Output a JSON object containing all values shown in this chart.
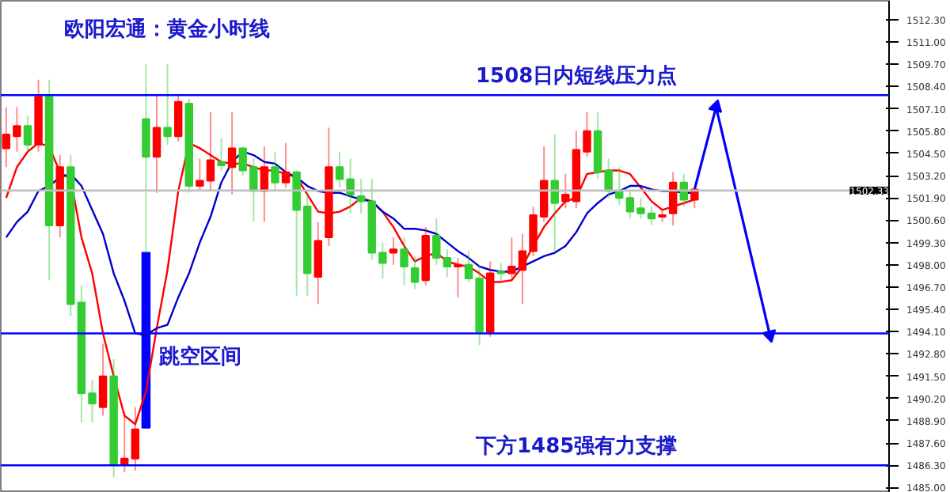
{
  "chart_data": {
    "type": "candlestick",
    "title": "欧阳宏通：黄金小时线",
    "categories": [
      null,
      null,
      null,
      null,
      null,
      null,
      null,
      null,
      null,
      null,
      null,
      null,
      null,
      null,
      null,
      null,
      null,
      null,
      null,
      null,
      null,
      null,
      null,
      null,
      null,
      null,
      null,
      null,
      null,
      null,
      null,
      null,
      null,
      null,
      null,
      null,
      null,
      null,
      null,
      null,
      null,
      null,
      null,
      null,
      null,
      null,
      null,
      null,
      null,
      null,
      null,
      null,
      null,
      null,
      null,
      null,
      null,
      null,
      null,
      null,
      null,
      null,
      null,
      null,
      null,
      null,
      null,
      null,
      null,
      null,
      null,
      null
    ],
    "ohlc": [
      [
        1504.8,
        1507.2,
        1503.7,
        1505.6
      ],
      [
        1505.5,
        1507.2,
        1504.6,
        1506.1
      ],
      [
        1506.1,
        1506.7,
        1504.6,
        1505.0
      ],
      [
        1505.0,
        1508.8,
        1504.6,
        1507.8
      ],
      [
        1507.8,
        1508.8,
        1497.1,
        1500.3
      ],
      [
        1500.3,
        1504.4,
        1499.6,
        1503.7
      ],
      [
        1503.7,
        1504.4,
        1495.0,
        1495.7
      ],
      [
        1495.8,
        1496.8,
        1488.8,
        1490.5
      ],
      [
        1490.5,
        1491.3,
        1488.8,
        1489.9
      ],
      [
        1489.7,
        1493.4,
        1489.2,
        1491.5
      ],
      [
        1491.5,
        1492.5,
        1485.6,
        1486.4
      ],
      [
        1486.4,
        1489.4,
        1485.9,
        1486.7
      ],
      [
        1486.7,
        1489.7,
        1486.0,
        1488.4
      ],
      [
        1506.5,
        1509.7,
        1498.7,
        1504.3
      ],
      [
        1504.3,
        1507.9,
        1502.2,
        1506.0
      ],
      [
        1506.0,
        1509.7,
        1505.0,
        1505.5
      ],
      [
        1505.5,
        1507.9,
        1505.2,
        1507.5
      ],
      [
        1507.4,
        1507.7,
        1502.2,
        1502.6
      ],
      [
        1502.6,
        1504.2,
        1502.3,
        1502.9
      ],
      [
        1502.9,
        1506.9,
        1502.3,
        1504.1
      ],
      [
        1504.0,
        1505.4,
        1503.5,
        1503.8
      ],
      [
        1503.7,
        1506.9,
        1502.1,
        1504.8
      ],
      [
        1504.8,
        1504.9,
        1503.2,
        1503.5
      ],
      [
        1503.7,
        1504.2,
        1500.5,
        1502.3
      ],
      [
        1502.3,
        1504.9,
        1500.5,
        1503.7
      ],
      [
        1503.7,
        1504.6,
        1502.3,
        1502.8
      ],
      [
        1502.8,
        1505.1,
        1502.5,
        1503.4
      ],
      [
        1503.4,
        1503.5,
        1496.2,
        1501.2
      ],
      [
        1501.4,
        1502.3,
        1496.2,
        1497.5
      ],
      [
        1497.3,
        1500.5,
        1495.7,
        1499.4
      ],
      [
        1499.6,
        1506.0,
        1499.1,
        1503.7
      ],
      [
        1503.7,
        1504.6,
        1502.5,
        1503.0
      ],
      [
        1503.0,
        1504.2,
        1501.0,
        1502.1
      ],
      [
        1502.0,
        1503.0,
        1501.0,
        1501.7
      ],
      [
        1501.7,
        1503.0,
        1498.3,
        1498.7
      ],
      [
        1498.7,
        1499.3,
        1497.2,
        1498.1
      ],
      [
        1498.7,
        1499.6,
        1498.0,
        1498.9
      ],
      [
        1498.9,
        1499.6,
        1496.8,
        1497.9
      ],
      [
        1497.8,
        1498.5,
        1496.6,
        1497.0
      ],
      [
        1497.1,
        1500.2,
        1496.8,
        1499.7
      ],
      [
        1499.7,
        1500.7,
        1498.0,
        1498.4
      ],
      [
        1498.4,
        1498.9,
        1497.3,
        1497.9
      ],
      [
        1497.9,
        1498.4,
        1496.1,
        1498.0
      ],
      [
        1498.0,
        1498.8,
        1497.0,
        1497.2
      ],
      [
        1497.2,
        1498.0,
        1493.3,
        1494.1
      ],
      [
        1494.0,
        1498.2,
        1493.8,
        1497.5
      ],
      [
        1497.6,
        1498.1,
        1497.0,
        1497.5
      ],
      [
        1497.5,
        1499.6,
        1497.2,
        1497.9
      ],
      [
        1497.7,
        1499.8,
        1495.7,
        1498.8
      ],
      [
        1498.8,
        1501.4,
        1498.5,
        1500.9
      ],
      [
        1500.8,
        1504.9,
        1500.5,
        1502.9
      ],
      [
        1502.9,
        1505.6,
        1498.8,
        1501.6
      ],
      [
        1501.7,
        1503.3,
        1501.3,
        1502.1
      ],
      [
        1501.7,
        1505.8,
        1501.3,
        1504.7
      ],
      [
        1504.6,
        1506.9,
        1504.3,
        1505.8
      ],
      [
        1505.8,
        1506.9,
        1503.0,
        1503.4
      ],
      [
        1503.5,
        1504.2,
        1501.9,
        1502.3
      ],
      [
        1502.3,
        1503.7,
        1501.5,
        1501.9
      ],
      [
        1501.9,
        1502.3,
        1500.7,
        1501.1
      ],
      [
        1501.3,
        1501.9,
        1500.7,
        1501.0
      ],
      [
        1501.0,
        1501.4,
        1500.3,
        1500.7
      ],
      [
        1500.8,
        1501.2,
        1500.5,
        1500.9
      ],
      [
        1501.0,
        1503.4,
        1500.3,
        1502.8
      ],
      [
        1502.8,
        1503.3,
        1501.4,
        1501.8
      ],
      [
        1501.8,
        1502.5,
        1501.3,
        1502.4
      ],
      null,
      null,
      null,
      null,
      null,
      null,
      null
    ],
    "colors": [
      "#ff0000",
      "#ff0000",
      "#33cc33",
      "#ff0000",
      "#33cc33",
      "#ff0000",
      "#33cc33",
      "#33cc33",
      "#33cc33",
      "#ff0000",
      "#33cc33",
      "#ff0000",
      "#ff0000",
      "#33cc33",
      "#ff0000",
      "#33cc33",
      "#ff0000",
      "#33cc33",
      "#ff0000",
      "#ff0000",
      "#33cc33",
      "#ff0000",
      "#33cc33",
      "#33cc33",
      "#ff0000",
      "#33cc33",
      "#ff0000",
      "#33cc33",
      "#33cc33",
      "#ff0000",
      "#ff0000",
      "#33cc33",
      "#33cc33",
      "#33cc33",
      "#33cc33",
      "#33cc33",
      "#ff0000",
      "#33cc33",
      "#33cc33",
      "#ff0000",
      "#33cc33",
      "#33cc33",
      "#ff0000",
      "#33cc33",
      "#33cc33",
      "#ff0000",
      "#33cc33",
      "#ff0000",
      "#ff0000",
      "#ff0000",
      "#ff0000",
      "#33cc33",
      "#ff0000",
      "#ff0000",
      "#ff0000",
      "#33cc33",
      "#33cc33",
      "#33cc33",
      "#33cc33",
      "#33cc33",
      "#33cc33",
      "#ff0000",
      "#ff0000",
      "#33cc33",
      "#ff0000",
      null,
      null,
      null,
      null,
      null,
      null,
      null
    ],
    "series": [
      {
        "type": "line",
        "color": "#ff0000",
        "values": [
          1501.9,
          1503.7,
          1504.6,
          1505.1,
          1504.9,
          1503.4,
          1503.0,
          1499.6,
          1497.5,
          1494.0,
          1491.5,
          1489.2,
          1488.7,
          1490.6,
          1494.3,
          1497.7,
          1502.3,
          1505.1,
          1504.8,
          1504.4,
          1504.0,
          1503.9,
          1503.9,
          1503.7,
          1503.5,
          1503.5,
          1503.3,
          1503.1,
          1502.1,
          1501.1,
          1501.0,
          1501.1,
          1501.4,
          1501.9,
          1501.7,
          1501.1,
          1500.2,
          1499.1,
          1498.2,
          1498.5,
          1498.7,
          1498.2,
          1498.0,
          1497.9,
          1497.5,
          1497.0,
          1497.0,
          1497.1,
          1497.9,
          1499.1,
          1500.2,
          1501.0,
          1501.7,
          1501.9,
          1503.3,
          1503.4,
          1503.5,
          1503.5,
          1503.3,
          1502.5,
          1501.7,
          1501.2,
          1501.4,
          1501.6,
          1501.8,
          null,
          null,
          null,
          null,
          null,
          null,
          null
        ]
      },
      {
        "type": "line",
        "color": "#0000cc",
        "values": [
          1499.6,
          1500.5,
          1501.1,
          1502.3,
          1502.6,
          1503.1,
          1503.3,
          1502.6,
          1501.2,
          1499.8,
          1497.5,
          1495.9,
          1494.0,
          1493.9,
          1494.3,
          1494.5,
          1496.1,
          1497.5,
          1499.3,
          1500.8,
          1502.8,
          1504.0,
          1504.6,
          1504.4,
          1504.0,
          1503.9,
          1503.4,
          1503.1,
          1502.6,
          1502.3,
          1502.2,
          1502.2,
          1502.0,
          1501.8,
          1501.7,
          1501.1,
          1500.7,
          1500.1,
          1500.1,
          1500.0,
          1499.8,
          1499.3,
          1498.8,
          1498.4,
          1497.9,
          1497.7,
          1497.6,
          1497.6,
          1497.9,
          1498.2,
          1498.5,
          1498.7,
          1499.1,
          1499.9,
          1501.0,
          1501.6,
          1502.1,
          1502.3,
          1502.6,
          1502.6,
          1502.4,
          1502.3,
          1502.3,
          1502.2,
          1502.2,
          null,
          null,
          null,
          null,
          null,
          null,
          null
        ]
      },
      {
        "type": "bar",
        "base": [
          null,
          null,
          null,
          null,
          null,
          null,
          null,
          null,
          null,
          null,
          null,
          null,
          null,
          1488.5,
          null,
          null,
          null,
          null,
          null,
          null,
          null,
          null,
          null,
          null,
          null,
          null,
          null,
          null,
          null,
          null,
          null,
          null,
          null,
          null,
          null,
          null,
          null,
          null,
          null,
          null,
          null,
          null,
          null,
          null,
          null,
          null,
          null,
          null,
          null,
          null,
          null,
          null,
          null,
          null,
          null,
          null,
          null,
          null,
          null,
          null,
          null,
          null,
          null,
          null,
          null,
          null,
          null,
          null,
          null,
          null,
          null,
          null
        ],
        "values": [
          null,
          null,
          null,
          null,
          null,
          null,
          null,
          null,
          null,
          null,
          null,
          null,
          null,
          10.2,
          null,
          null,
          null,
          null,
          null,
          null,
          null,
          null,
          null,
          null,
          null,
          null,
          null,
          null,
          null,
          null,
          null,
          null,
          null,
          null,
          null,
          null,
          null,
          null,
          null,
          null,
          null,
          null,
          null,
          null,
          null,
          null,
          null,
          null,
          null,
          null,
          null,
          null,
          null,
          null,
          null,
          null,
          null,
          null,
          null,
          null,
          null,
          null,
          null,
          null,
          null,
          null,
          null,
          null,
          null,
          null,
          null,
          null
        ],
        "color": "#0000ff"
      },
      {
        "type": "line",
        "values": [
          null,
          null,
          null,
          null,
          null,
          null,
          null,
          null,
          null,
          null,
          null,
          null,
          null,
          null,
          null,
          null,
          null,
          null,
          null,
          null,
          null,
          null,
          null,
          null,
          null,
          null,
          null,
          null,
          null,
          null,
          null,
          null,
          null,
          null,
          null,
          null,
          null,
          null,
          null,
          null,
          null,
          null,
          null,
          null,
          null,
          null,
          null,
          null,
          null,
          null,
          null,
          null,
          null,
          null,
          null,
          null,
          null,
          null,
          null,
          null,
          null,
          null,
          null,
          null,
          1502.4,
          null,
          1507.2,
          null,
          null,
          null,
          null,
          1493.9
        ],
        "color": "#0000ff",
        "marker": "triangle"
      }
    ],
    "ylim": [
      1484.7,
      1513.4
    ],
    "yticks": [
      {
        "value": 1485.0,
        "label": "1485.00"
      },
      {
        "value": 1486.3,
        "label": "1486.30"
      },
      {
        "value": 1487.6,
        "label": "1487.60"
      },
      {
        "value": 1488.9,
        "label": "1488.90"
      },
      {
        "value": 1490.2,
        "label": "1490.20"
      },
      {
        "value": 1491.5,
        "label": "1491.50"
      },
      {
        "value": 1492.8,
        "label": "1492.80"
      },
      {
        "value": 1494.1,
        "label": "1494.10"
      },
      {
        "value": 1495.4,
        "label": "1495.40"
      },
      {
        "value": 1496.7,
        "label": "1496.70"
      },
      {
        "value": 1498.0,
        "label": "1498.00"
      },
      {
        "value": 1499.3,
        "label": "1499.30"
      },
      {
        "value": 1500.6,
        "label": "1500.60"
      },
      {
        "value": 1501.9,
        "label": "1501.90"
      },
      {
        "value": 1503.2,
        "label": "1503.20"
      },
      {
        "value": 1504.5,
        "label": "1504.50"
      },
      {
        "value": 1505.8,
        "label": "1505.80"
      },
      {
        "value": 1507.1,
        "label": "1507.10"
      },
      {
        "value": 1508.4,
        "label": "1508.40"
      },
      {
        "value": 1509.7,
        "label": "1509.70"
      },
      {
        "value": 1511.0,
        "label": "1511.00"
      },
      {
        "value": 1512.3,
        "label": "1512.30"
      }
    ],
    "ref_lines": [
      {
        "axis": "y",
        "value": 1507.9,
        "label": "1508日内短线压力点",
        "color": "#0000ff"
      },
      {
        "axis": "y",
        "value": 1494.0,
        "color": "#0000ff"
      },
      {
        "axis": "y",
        "value": 1486.3,
        "label": "下方1485强有力支撑",
        "color": "#0000ff"
      },
      {
        "axis": "y",
        "value": 1502.33,
        "label": "1502.33",
        "color": "#c0c0c0"
      }
    ],
    "annotations": [
      "跳空区间"
    ],
    "tick_labels": "y",
    "grid": false
  }
}
